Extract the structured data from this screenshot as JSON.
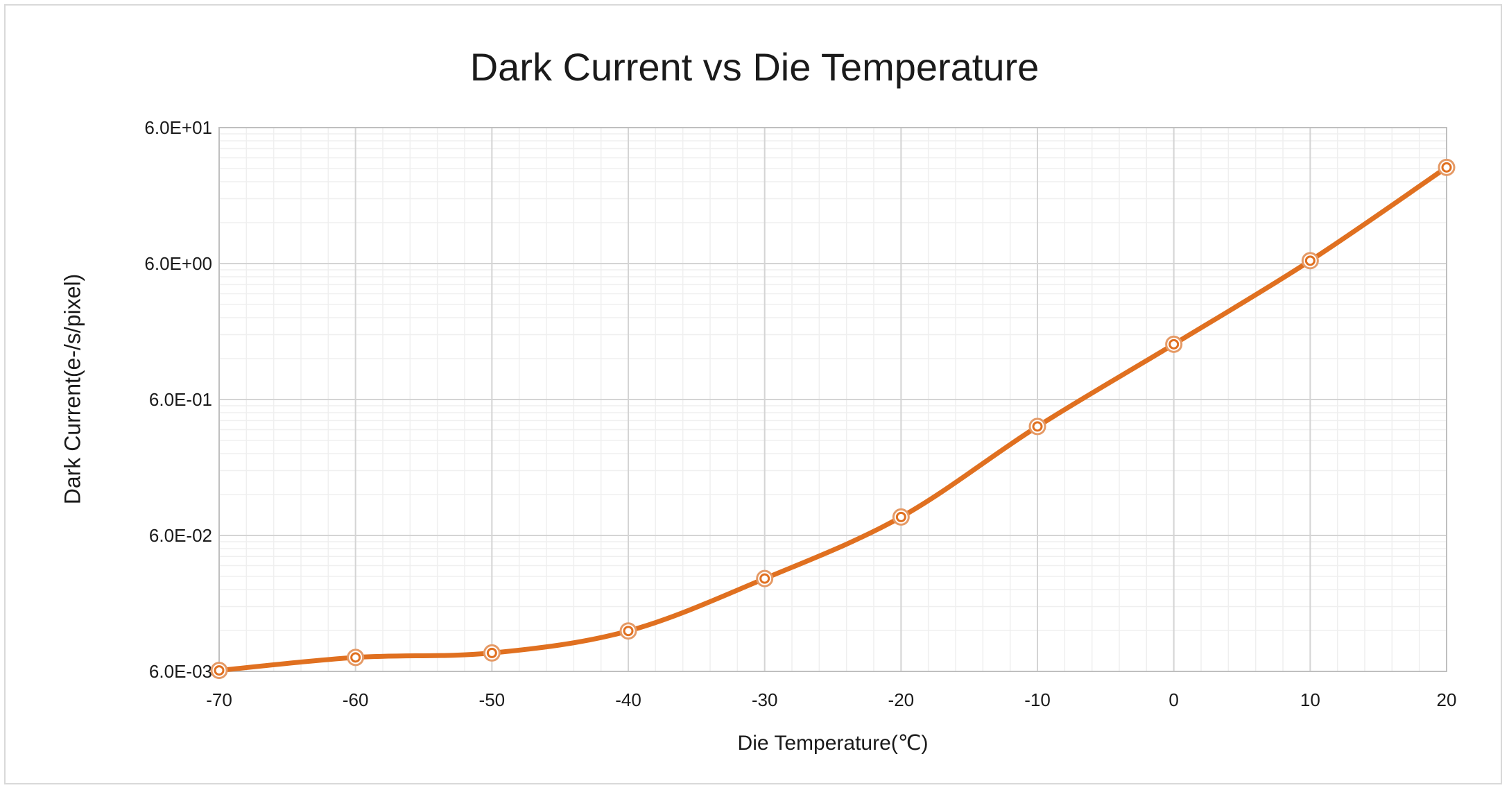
{
  "chart_data": {
    "type": "line",
    "title": "Dark Current vs Die Temperature",
    "xlabel": "Die Temperature(℃)",
    "ylabel": "Dark Current(e-/s/pixel)",
    "x": [
      -70,
      -60,
      -50,
      -40,
      -30,
      -20,
      -10,
      0,
      10,
      20
    ],
    "series": [
      {
        "values": [
          0.0061,
          0.0076,
          0.0082,
          0.0119,
          0.0289,
          0.082,
          0.38,
          1.53,
          6.3,
          30.6
        ],
        "color": "#e07020",
        "marker": "circle",
        "smooth": true
      }
    ],
    "xlim": [
      -70,
      20
    ],
    "ylim": [
      0.006,
      60
    ],
    "yscale": "log",
    "xticks": [
      "-70",
      "-60",
      "-50",
      "-40",
      "-30",
      "-20",
      "-10",
      "0",
      "10",
      "20"
    ],
    "yticks": [
      {
        "value": 0.006,
        "label": "6.0E-03"
      },
      {
        "value": 0.06,
        "label": "6.0E-02"
      },
      {
        "value": 0.6,
        "label": "6.0E-01"
      },
      {
        "value": 6,
        "label": "6.0E+00"
      },
      {
        "value": 60,
        "label": "6.0E+01"
      }
    ],
    "grid": true,
    "legend": "none"
  }
}
